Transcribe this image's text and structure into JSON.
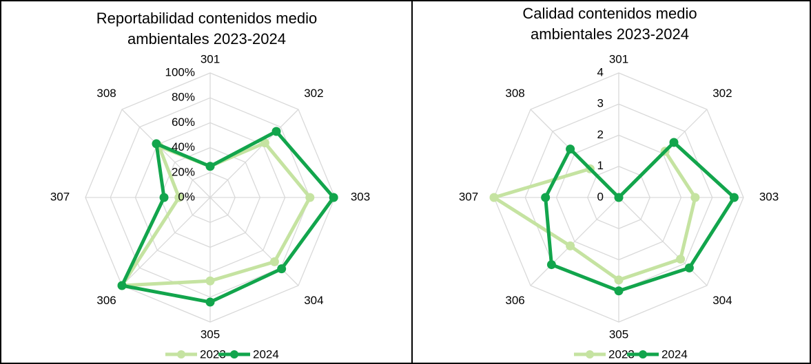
{
  "chart_data": [
    {
      "type": "radar",
      "title": "Reportabilidad contenidos medio ambientales 2023-2024",
      "categories": [
        "301",
        "302",
        "303",
        "304",
        "305",
        "306",
        "307",
        "308"
      ],
      "series": [
        {
          "name": "2023",
          "color": "#c5e3a1",
          "values": [
            25,
            62,
            80,
            73,
            67,
            100,
            25,
            58
          ]
        },
        {
          "name": "2024",
          "color": "#12a54c",
          "values": [
            25,
            75,
            99,
            81,
            84,
            100,
            37,
            61
          ]
        }
      ],
      "ylim": [
        0,
        100
      ],
      "yticks": [
        {
          "value": 0,
          "label": "0%"
        },
        {
          "value": 20,
          "label": "20%"
        },
        {
          "value": 40,
          "label": "40%"
        },
        {
          "value": 60,
          "label": "60%"
        },
        {
          "value": 80,
          "label": "80%"
        },
        {
          "value": 100,
          "label": "100%"
        }
      ],
      "grid": true,
      "legend": "bottom"
    },
    {
      "type": "radar",
      "title": "Calidad contenidos medio ambientales 2023-2024",
      "categories": [
        "301",
        "302",
        "303",
        "304",
        "305",
        "306",
        "307",
        "308"
      ],
      "series": [
        {
          "name": "2023",
          "color": "#c5e3a1",
          "values": [
            0,
            2.1,
            2.45,
            2.8,
            2.65,
            2.2,
            4,
            1.3
          ]
        },
        {
          "name": "2024",
          "color": "#12a54c",
          "values": [
            0,
            2.5,
            3.7,
            3.2,
            3,
            3.05,
            2.35,
            2.2
          ]
        }
      ],
      "ylim": [
        0,
        4
      ],
      "yticks": [
        0,
        1,
        2,
        3,
        4
      ],
      "grid": true,
      "legend": "bottom"
    }
  ]
}
